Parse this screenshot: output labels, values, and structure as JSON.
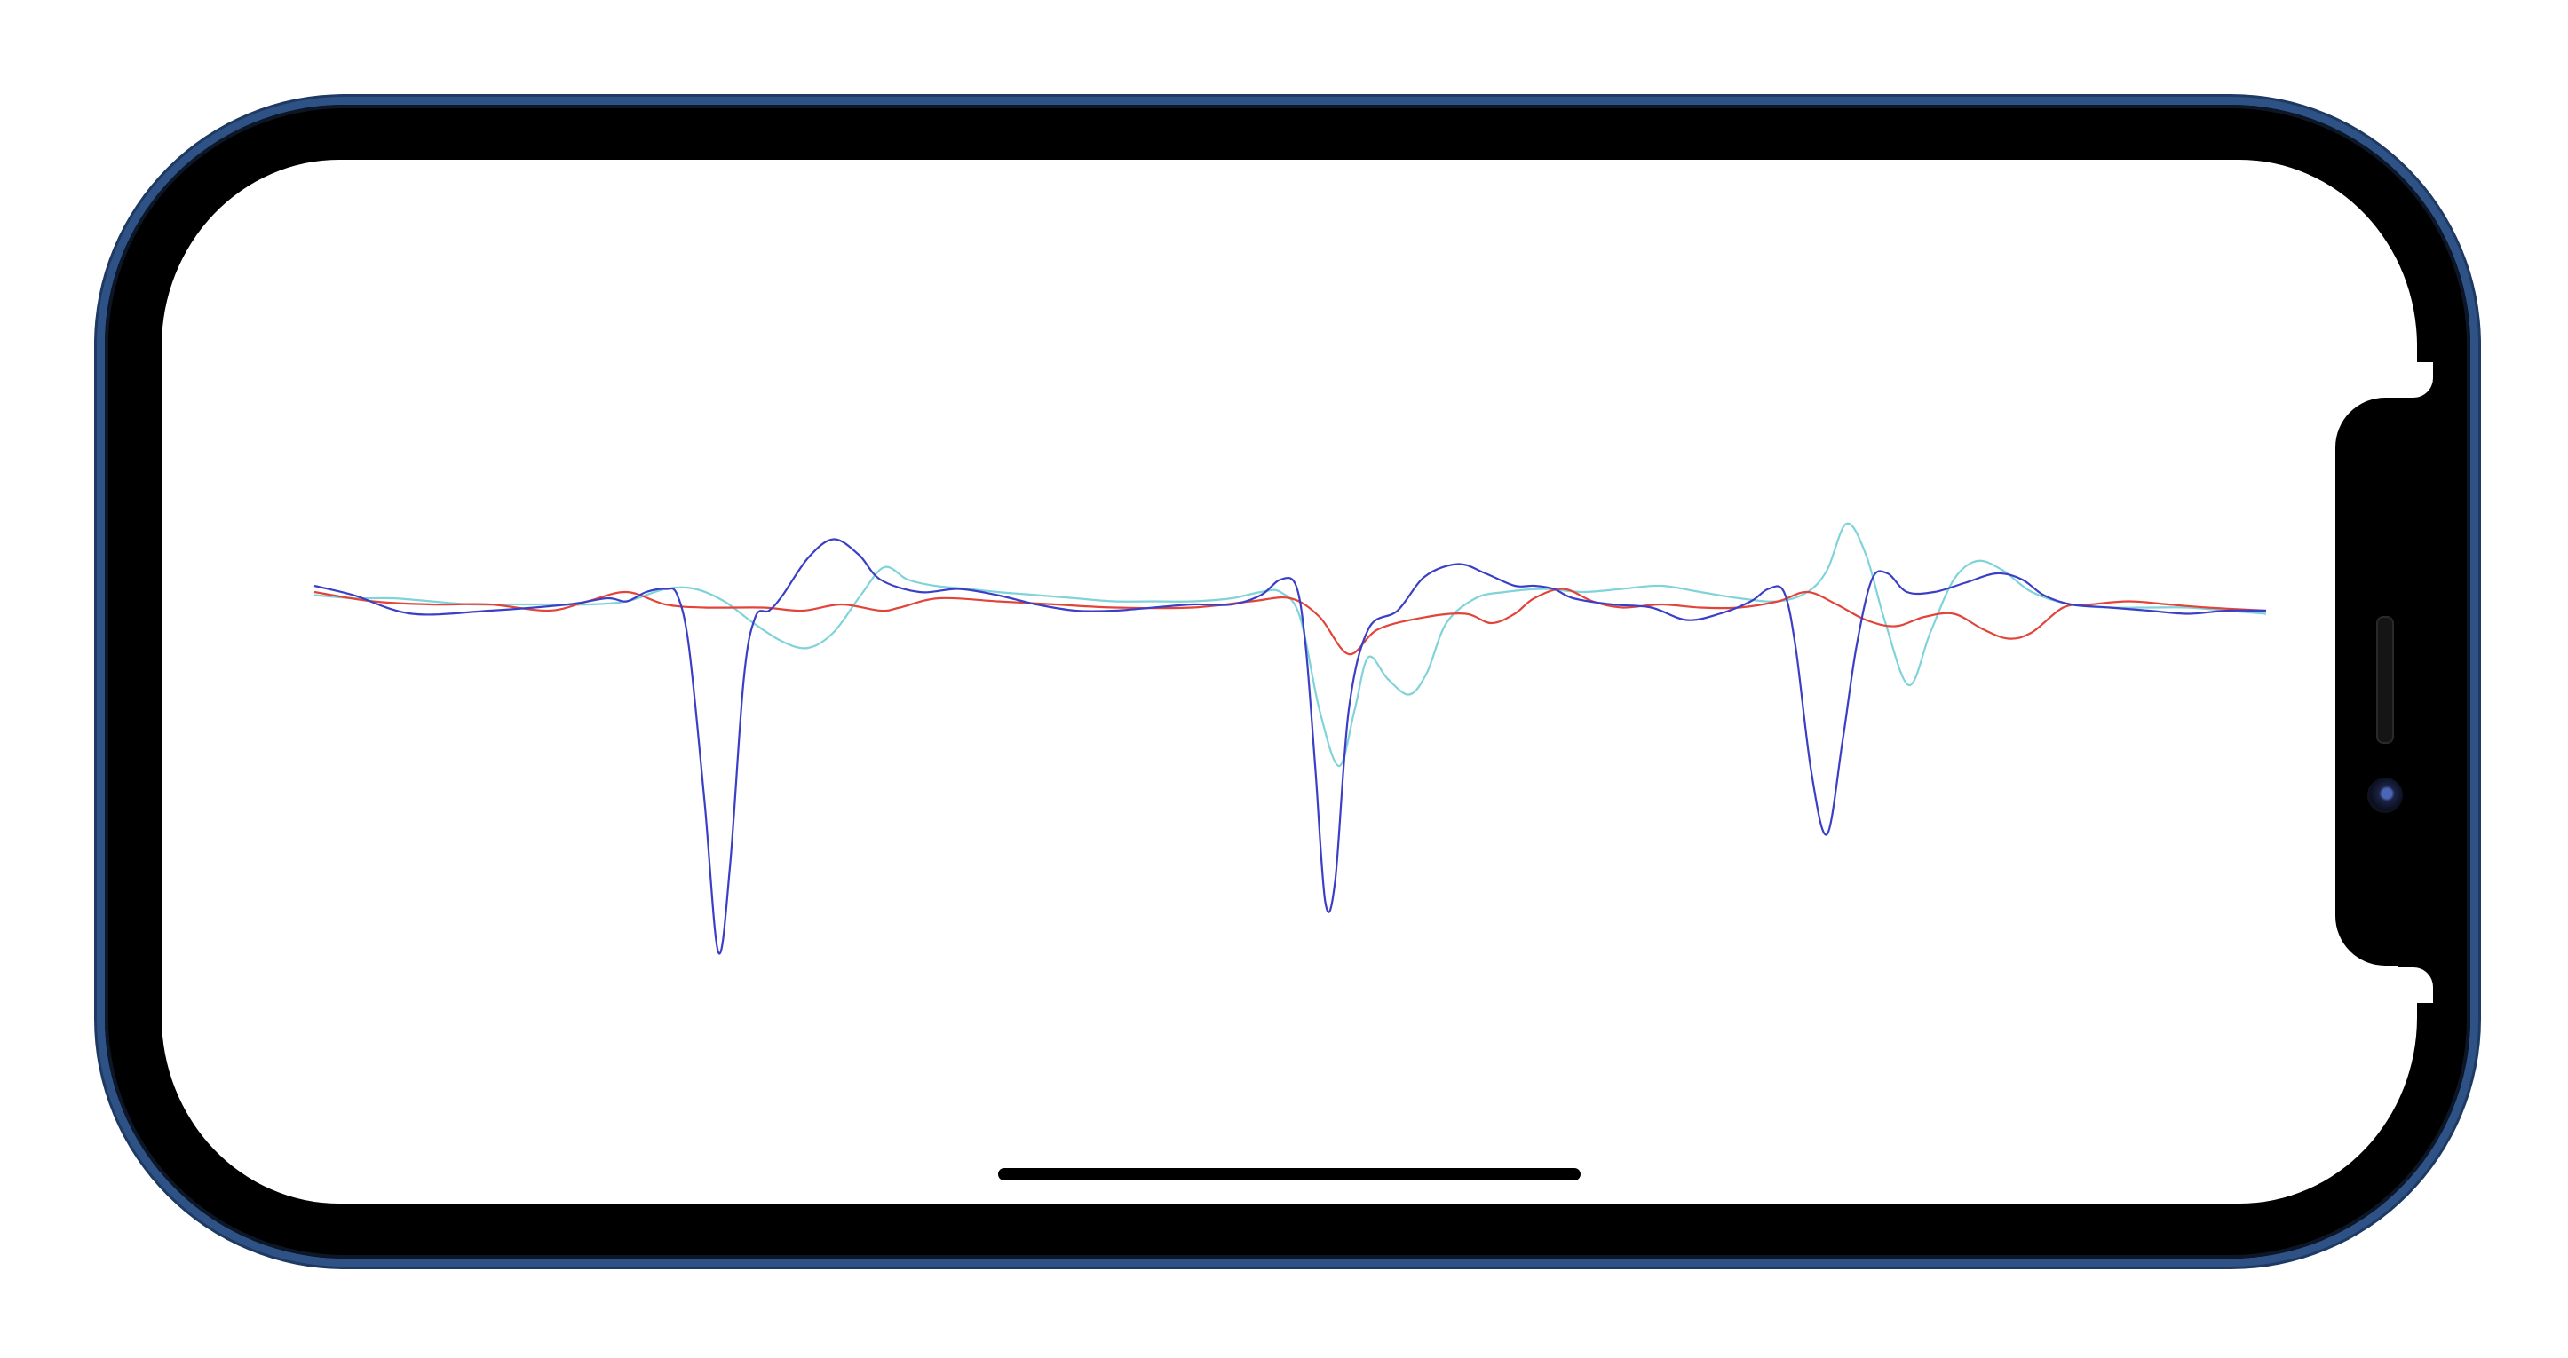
{
  "device": {
    "frame_color": "#2f5286",
    "orientation": "landscape"
  },
  "chart_data": {
    "type": "line",
    "title": "",
    "xlabel": "",
    "ylabel": "",
    "grid": false,
    "legend": "none",
    "xlim": [
      0,
      100
    ],
    "ylim": [
      -100,
      100
    ],
    "series": [
      {
        "color": "#3b3fc6",
        "points": [
          [
            0,
            20
          ],
          [
            2,
            17
          ],
          [
            5,
            11
          ],
          [
            9,
            12
          ],
          [
            13,
            14
          ],
          [
            15,
            16
          ],
          [
            16,
            15
          ],
          [
            17,
            18
          ],
          [
            18,
            19
          ],
          [
            18.6,
            17
          ],
          [
            19.2,
            0
          ],
          [
            20,
            -50
          ],
          [
            20.7,
            -98
          ],
          [
            21.3,
            -70
          ],
          [
            22,
            -10
          ],
          [
            22.6,
            10
          ],
          [
            23.3,
            12
          ],
          [
            24,
            17
          ],
          [
            25.3,
            29
          ],
          [
            26.6,
            35
          ],
          [
            27.9,
            30
          ],
          [
            29,
            22
          ],
          [
            31,
            18
          ],
          [
            33,
            19
          ],
          [
            35,
            17
          ],
          [
            37,
            14
          ],
          [
            39,
            12
          ],
          [
            41,
            12
          ],
          [
            43,
            13
          ],
          [
            45,
            14
          ],
          [
            47,
            14
          ],
          [
            48.5,
            17
          ],
          [
            49.5,
            22
          ],
          [
            50.3,
            20
          ],
          [
            50.8,
            0
          ],
          [
            51.3,
            -40
          ],
          [
            51.8,
            -82
          ],
          [
            52.3,
            -75
          ],
          [
            53,
            -20
          ],
          [
            54,
            6
          ],
          [
            55.5,
            12
          ],
          [
            56.9,
            23
          ],
          [
            58.6,
            27
          ],
          [
            60,
            24
          ],
          [
            61.5,
            20
          ],
          [
            62.5,
            20
          ],
          [
            63.5,
            19
          ],
          [
            64.5,
            16
          ],
          [
            66.5,
            14
          ],
          [
            68.5,
            13
          ],
          [
            70.3,
            9
          ],
          [
            72,
            11
          ],
          [
            73.6,
            15
          ],
          [
            74.5,
            19
          ],
          [
            75.3,
            18
          ],
          [
            75.9,
            0
          ],
          [
            76.7,
            -40
          ],
          [
            77.5,
            -60
          ],
          [
            78.3,
            -30
          ],
          [
            79,
            0
          ],
          [
            79.8,
            22
          ],
          [
            80.6,
            24
          ],
          [
            81.6,
            18
          ],
          [
            83,
            18
          ],
          [
            84.6,
            21
          ],
          [
            86.2,
            24
          ],
          [
            87.5,
            22
          ],
          [
            88.6,
            17
          ],
          [
            90,
            14
          ],
          [
            92,
            13
          ],
          [
            94,
            12
          ],
          [
            96,
            11
          ],
          [
            98,
            12
          ],
          [
            100,
            12
          ]
        ]
      },
      {
        "color": "#e2443a",
        "points": [
          [
            0,
            18
          ],
          [
            3,
            15
          ],
          [
            6,
            14
          ],
          [
            9,
            14
          ],
          [
            12,
            12
          ],
          [
            14,
            15
          ],
          [
            16,
            18
          ],
          [
            18,
            14
          ],
          [
            20,
            13
          ],
          [
            23,
            13
          ],
          [
            25,
            12
          ],
          [
            27,
            14
          ],
          [
            29,
            12
          ],
          [
            30,
            13
          ],
          [
            32,
            16
          ],
          [
            35,
            15
          ],
          [
            38,
            14
          ],
          [
            41,
            13
          ],
          [
            45,
            13
          ],
          [
            48,
            15
          ],
          [
            50,
            16
          ],
          [
            51.5,
            10
          ],
          [
            53,
            -2
          ],
          [
            54.5,
            6
          ],
          [
            57,
            10
          ],
          [
            59,
            11
          ],
          [
            60.3,
            8
          ],
          [
            61.5,
            11
          ],
          [
            62.5,
            16
          ],
          [
            64,
            19
          ],
          [
            65.5,
            15
          ],
          [
            67,
            13
          ],
          [
            69,
            14
          ],
          [
            71,
            13
          ],
          [
            73,
            13
          ],
          [
            75,
            15
          ],
          [
            76.5,
            18
          ],
          [
            78,
            14
          ],
          [
            79.5,
            9
          ],
          [
            81,
            7
          ],
          [
            82.5,
            10
          ],
          [
            84,
            11
          ],
          [
            85.5,
            6
          ],
          [
            86.8,
            3
          ],
          [
            88,
            5
          ],
          [
            89.6,
            13
          ],
          [
            91,
            14
          ],
          [
            93,
            15
          ],
          [
            95,
            14
          ],
          [
            97,
            13
          ],
          [
            100,
            12
          ]
        ]
      },
      {
        "color": "#7fd3d9",
        "points": [
          [
            0,
            17
          ],
          [
            2,
            16
          ],
          [
            4,
            16
          ],
          [
            6,
            15
          ],
          [
            8,
            14
          ],
          [
            10,
            14
          ],
          [
            12,
            14
          ],
          [
            14,
            14
          ],
          [
            16,
            15
          ],
          [
            18,
            19
          ],
          [
            19.5,
            19
          ],
          [
            21,
            15
          ],
          [
            22.5,
            8
          ],
          [
            24,
            2
          ],
          [
            25.3,
            0
          ],
          [
            26.6,
            5
          ],
          [
            28,
            17
          ],
          [
            29.2,
            26
          ],
          [
            30.4,
            22
          ],
          [
            31.8,
            20
          ],
          [
            33.5,
            19
          ],
          [
            35,
            18
          ],
          [
            37,
            17
          ],
          [
            39,
            16
          ],
          [
            41,
            15
          ],
          [
            43,
            15
          ],
          [
            45,
            15
          ],
          [
            47,
            16
          ],
          [
            48.5,
            18
          ],
          [
            49.5,
            18
          ],
          [
            50.5,
            10
          ],
          [
            51.5,
            -20
          ],
          [
            52.5,
            -38
          ],
          [
            53.3,
            -20
          ],
          [
            54,
            -3
          ],
          [
            55,
            -10
          ],
          [
            56.1,
            -15
          ],
          [
            57,
            -8
          ],
          [
            58,
            8
          ],
          [
            59.5,
            16
          ],
          [
            61,
            18
          ],
          [
            63,
            19
          ],
          [
            65,
            18
          ],
          [
            67,
            19
          ],
          [
            69,
            20
          ],
          [
            71,
            18
          ],
          [
            73,
            16
          ],
          [
            75,
            15
          ],
          [
            76.5,
            18
          ],
          [
            77.5,
            25
          ],
          [
            78.5,
            40
          ],
          [
            79.5,
            30
          ],
          [
            80.5,
            8
          ],
          [
            81.7,
            -12
          ],
          [
            82.8,
            5
          ],
          [
            84,
            22
          ],
          [
            85.2,
            28
          ],
          [
            86.5,
            25
          ],
          [
            88,
            18
          ],
          [
            90,
            14
          ],
          [
            92,
            13
          ],
          [
            94,
            13
          ],
          [
            96,
            13
          ],
          [
            98,
            12
          ],
          [
            100,
            11
          ]
        ]
      }
    ]
  }
}
